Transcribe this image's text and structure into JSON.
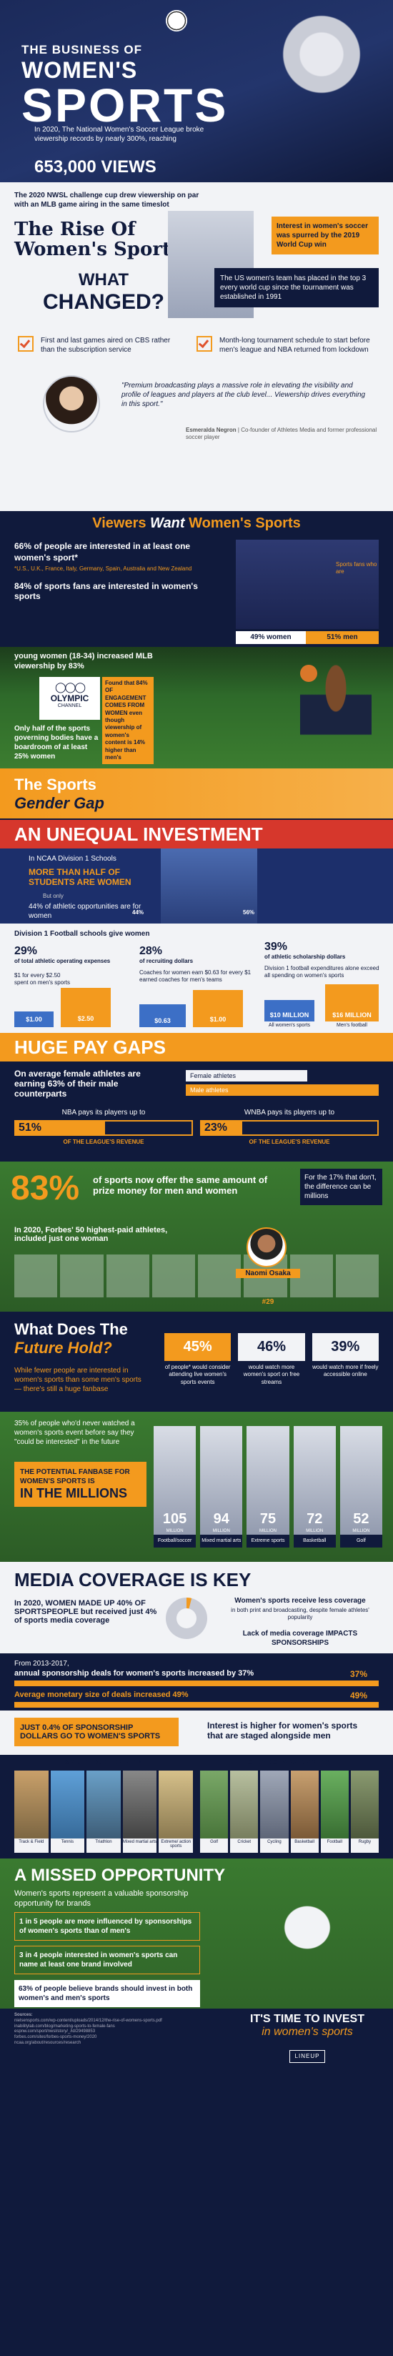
{
  "hero": {
    "the_business_of": "THE BUSINESS OF",
    "womens": "WOMEN'S",
    "sports": "SPORTS",
    "intro": "In 2020, The National Women's Soccer League broke viewership records by nearly 300%, reaching",
    "views": "653,000 VIEWS"
  },
  "rise": {
    "nwsl_note": "The 2020 NWSL challenge cup drew viewership on par with an MLB game airing in the same timeslot",
    "title_line1": "The Rise Of",
    "title_line2": "Women's Sports",
    "interest_note": "Interest in women's soccer was spurred by the 2019 World Cup win",
    "us_note": "The US women's team has placed in the top 3 every world cup since the tournament was established in 1991",
    "what": "WHAT",
    "changed": "CHANGED?",
    "change1": "First and last games aired on CBS rather than the subscription service",
    "change2": "Month-long tournament schedule to start before men's league and NBA returned from lockdown",
    "quote": "\"Premium broadcasting plays a massive role in elevating the visibility and profile of leagues and players at the club level... Viewership drives everything in this sport.\"",
    "quote_author": "Esmeralda Negron",
    "quote_role": "Co-founder of Athletes Media and former professional soccer player"
  },
  "viewers": {
    "title_a": "Viewers ",
    "title_b": "Want",
    "title_c": " Women's Sports",
    "stat1": "66% of people are interested in at least one women's sport*",
    "stat1_note": "*U.S., U.K., France, Italy, Germany, Spain, Australia and New Zealand",
    "stat2": "84% of sports fans are interested in women's sports",
    "sports_fans": "Sports fans who are",
    "women_pct": "49% women",
    "men_pct": "51% men",
    "young": "young women (18-34) increased MLB viewership by 83%",
    "olympic": "OLYMPIC",
    "channel": "CHANNEL",
    "olympic_note": "Found that 84% OF ENGAGEMENT COMES FROM WOMEN even though viewership of women's content is 14% higher than men's",
    "governing": "Only half of the sports governing bodies have a boardroom of at least 25% women"
  },
  "gap": {
    "title_line1": "The Sports",
    "title_line2": "Gender Gap",
    "unequal": "AN UNEQUAL INVESTMENT",
    "ncaa": "In NCAA Division 1 Schools",
    "more_than_half": "MORE THAN HALF OF STUDENTS ARE WOMEN",
    "but": "But only",
    "opps": "44% of athletic opportunities are for women",
    "pct_44": "44%",
    "pct_56": "56%",
    "div1": "Division 1 Football schools give women",
    "col1_pct": "29%",
    "col1_label": "of total athletic operating expenses",
    "col2_pct": "28%",
    "col2_label": "of recruiting dollars",
    "col3_pct": "39%",
    "col3_label": "of athletic scholarship dollars",
    "spend_note": "$1 for every $2.50 spent on men's sports",
    "spend_a": "$1.00",
    "spend_b": "$2.50",
    "coach_note": "Coaches for women earn $0.63 for every $1 earned coaches for men's teams",
    "coach_a": "$0.63",
    "coach_b": "$1.00",
    "football_note": "Division 1 football expenditures alone exceed all spending on women's sports",
    "fb_a": "$10 MILLION",
    "fb_a_label": "All women's sports",
    "fb_b": "$16 MILLION",
    "fb_b_label": "Men's football"
  },
  "pay": {
    "title": "HUGE PAY GAPS",
    "avg": "On average female athletes are earning 63% of their male counterparts",
    "female": "Female athletes",
    "male": "Male athletes",
    "nba": "NBA pays its players up to",
    "nba_pct": "51%",
    "nba_rev": "OF THE LEAGUE'S REVENUE",
    "wnba": "WNBA pays its players up to",
    "wnba_pct": "23%",
    "wnba_rev": "OF THE LEAGUE'S REVENUE",
    "big_pct": "83%",
    "prize": "of sports now offer the same amount of prize money for men and women",
    "other17": "For the 17% that don't, the difference can be millions",
    "forbes": "In 2020, Forbes' 50 highest-paid athletes, included just one woman",
    "osaka": "Naomi Osaka",
    "osaka_rank": "#29"
  },
  "future": {
    "title_line1": "What Does The",
    "title_line2": "Future Hold?",
    "note": "While fewer people are interested in women's sports than some men's sports — there's still a huge fanbase",
    "p1": "45%",
    "p1_label": "of people* would consider attending live women's sports events",
    "p2": "46%",
    "p2_label": "would watch more women's sport on free streams",
    "p3": "39%",
    "p3_label": "would watch more if freely accessible online",
    "dont_watch": "35% of people who'd never watched a women's sports event before say they \"could be interested\" in the future",
    "potential": "THE POTENTIAL FANBASE FOR WOMEN'S SPORTS IS",
    "millions": "IN THE MILLIONS",
    "fans": [
      {
        "value": "105",
        "label": "Football/soccer"
      },
      {
        "value": "94",
        "label": "Mixed martial arts"
      },
      {
        "value": "75",
        "label": "Extreme sports"
      },
      {
        "value": "72",
        "label": "Basketball"
      },
      {
        "value": "52",
        "label": "Golf"
      }
    ],
    "millions_word": "MILLION"
  },
  "media": {
    "title": "MEDIA COVERAGE IS KEY",
    "women_made": "In 2020, WOMEN MADE UP 40% OF SPORTSPEOPLE but received just 4% of sports media coverage",
    "less_cov": "Women's sports receive less coverage",
    "less_sub": "in both print and broadcasting, despite female athletes' popularity",
    "lack": "Lack of media coverage IMPACTS SPONSORSHIPS",
    "from": "From 2013-2017,",
    "sponsor": "annual sponsorship deals for women's sports increased by 37%",
    "sponsor_pct": "37%",
    "avg_money": "Average monetary size of deals increased 49%",
    "avg_pct": "49%",
    "just": "JUST 0.4% OF SPONSORSHIP DOLLARS GO TO WOMEN'S SPORTS",
    "higher": "Interest is higher for women's sports that are staged alongside men",
    "staged_together": "STAGED TOGETHER OFTEN",
    "staged_sep": "STAGED SEPARATELY OFTEN",
    "together_sports": [
      "Track & Field",
      "Tennis",
      "Triathlon",
      "Mixed martial arts",
      "Extreme/ action sports"
    ],
    "sep_sports": [
      "Golf",
      "Cricket",
      "Cycling",
      "Basketball",
      "Football",
      "Rugby"
    ]
  },
  "missed": {
    "title": "A MISSED OPPORTUNITY",
    "intro": "Women's sports represent a valuable sponsorship opportunity for brands",
    "stat1": "1 in 5 people are more influenced by sponsorships of women's sports than of men's",
    "stat2": "3 in 4 people interested in women's sports can name at least one brand involved",
    "stat3": "63% of people believe brands should invest in both women's and men's sports",
    "cta_line1": "IT'S TIME TO INVEST",
    "cta_line2": "in women's sports",
    "source_label": "Sources:",
    "sources": [
      "nielsensports.com/wp-content/uploads/2014/12/the-rise-of-womens-sports.pdf",
      "inabilitylab.com/blog/marketing-sports-to-female-fans",
      "espnw.com/sport/nwsl/story/_/id/29498853",
      "forbes.com/sites/forbes-sports-money/2020",
      "ncaa.org/about/resources/research"
    ],
    "brand": "LINEUP"
  },
  "colors": {
    "navy": "#101a3c",
    "orange": "#f39a1e",
    "green": "#2f6b2d",
    "white": "#f2f3f6"
  }
}
